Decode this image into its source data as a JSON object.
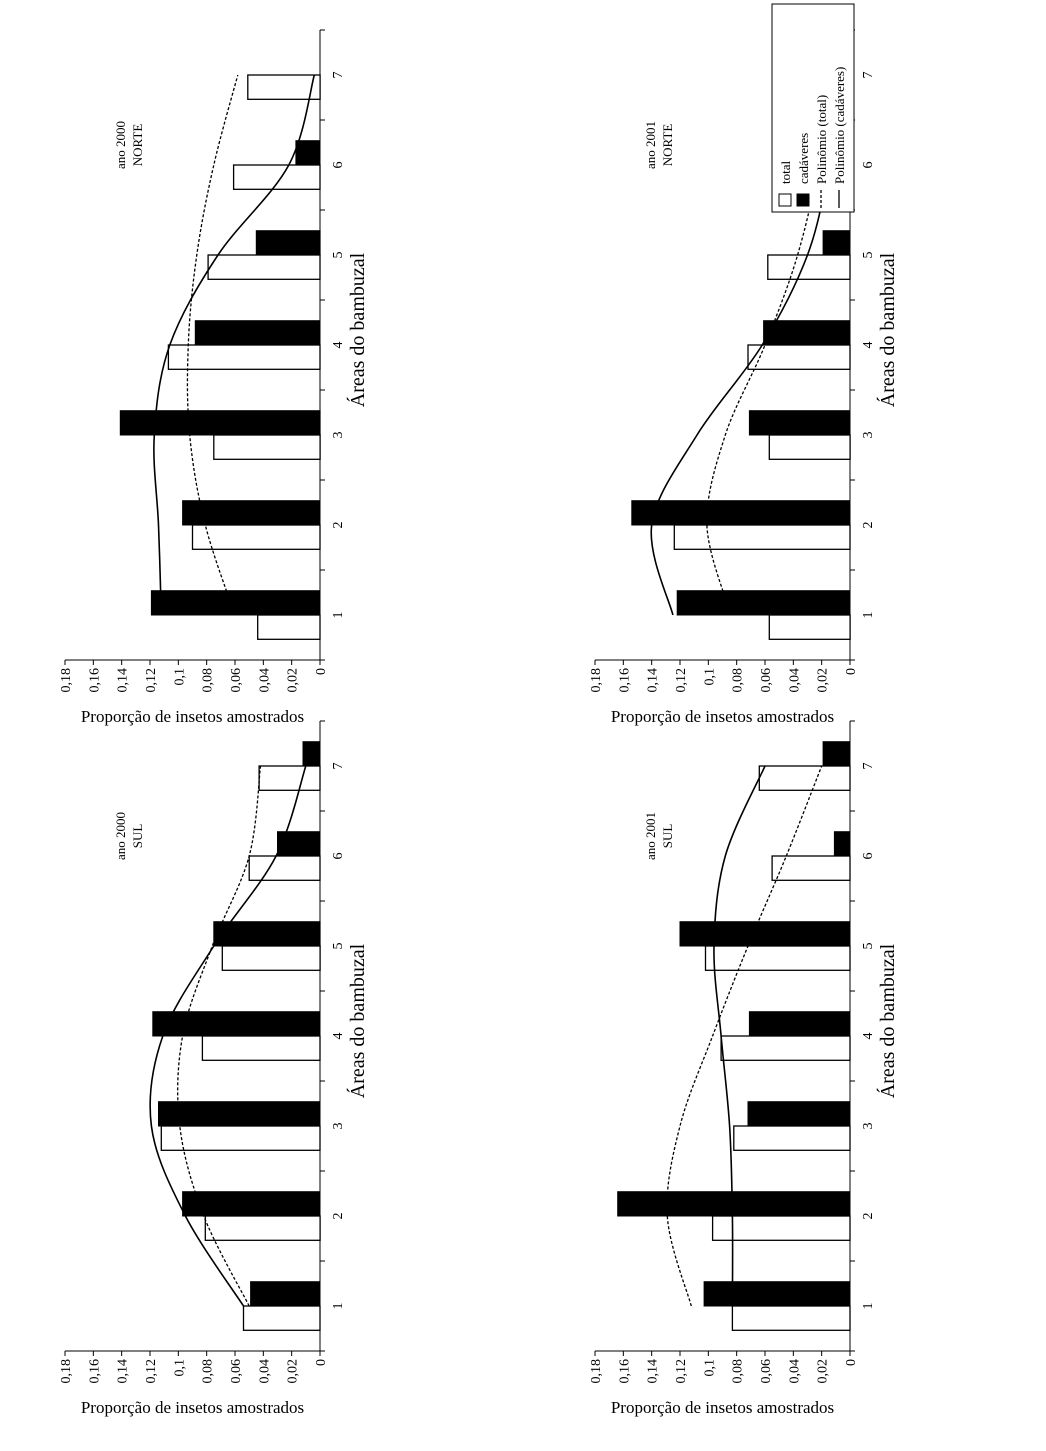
{
  "legend": {
    "items": [
      {
        "label": "total",
        "kind": "bar",
        "color": "#ffffff"
      },
      {
        "label": "cadáveres",
        "kind": "bar",
        "color": "#000000"
      },
      {
        "label": "Polinômio (total)",
        "kind": "line",
        "style": "dashed"
      },
      {
        "label": "Polinômio (cadáveres)",
        "kind": "line",
        "style": "solid"
      }
    ],
    "placement": "top-right"
  },
  "chart_data": [
    {
      "type": "bar",
      "title": "ano 2000 NORTE",
      "title_lines": [
        "ano 2000",
        "NORTE"
      ],
      "xlabel": "Áreas do bambuzal",
      "ylabel": "Proporção de insetos amostrados",
      "categories": [
        "1",
        "2",
        "3",
        "4",
        "5",
        "6",
        "7"
      ],
      "ylim": [
        0,
        0.18
      ],
      "yticks": [
        "0",
        "0,02",
        "0,04",
        "0,06",
        "0,08",
        "0,1",
        "0,12",
        "0,14",
        "0,16",
        "0,18"
      ],
      "series": [
        {
          "name": "total",
          "values": [
            0.044,
            0.09,
            0.075,
            0.107,
            0.079,
            0.061,
            0.051
          ]
        },
        {
          "name": "cadáveres",
          "values": [
            0.119,
            0.097,
            0.141,
            0.088,
            0.045,
            0.017,
            0
          ]
        }
      ],
      "trend": {
        "Polinômio (total)": [
          0.06,
          0.081,
          0.092,
          0.093,
          0.087,
          0.075,
          0.058
        ],
        "Polinômio (cadáveres)": [
          0.112,
          0.114,
          0.117,
          0.106,
          0.072,
          0.022,
          0.004
        ]
      }
    },
    {
      "type": "bar",
      "title": "ano 2001 NORTE",
      "title_lines": [
        "ano 2001",
        "NORTE"
      ],
      "xlabel": "Áreas do bambuzal",
      "ylabel": "Proporção de insetos amostrados",
      "categories": [
        "1",
        "2",
        "3",
        "4",
        "5",
        "6",
        "7"
      ],
      "ylim": [
        0,
        0.18
      ],
      "yticks": [
        "0",
        "0,02",
        "0,04",
        "0,06",
        "0,08",
        "0,1",
        "0,12",
        "0,14",
        "0,16",
        "0,18"
      ],
      "series": [
        {
          "name": "total",
          "values": [
            0.057,
            0.124,
            0.057,
            0.072,
            0.058,
            0.024,
            0.021
          ]
        },
        {
          "name": "cadáveres",
          "values": [
            0.122,
            0.154,
            0.071,
            0.061,
            0.019,
            0.009,
            0
          ]
        }
      ],
      "trend": {
        "Polinômio (total)": [
          0.084,
          0.101,
          0.088,
          0.06,
          0.037,
          0.023,
          0.02
        ],
        "Polinômio (cadáveres)": [
          0.125,
          0.14,
          0.108,
          0.062,
          0.03,
          0.014,
          0.0
        ]
      }
    },
    {
      "type": "bar",
      "title": "ano 2000 SUL",
      "title_lines": [
        "ano 2000",
        "SUL"
      ],
      "xlabel": "Áreas do bambuzal",
      "ylabel": "Proporção de insetos amostrados",
      "categories": [
        "1",
        "2",
        "3",
        "4",
        "5",
        "6",
        "7"
      ],
      "ylim": [
        0,
        0.18
      ],
      "yticks": [
        "0",
        "0,02",
        "0,04",
        "0,06",
        "0,08",
        "0,1",
        "0,12",
        "0,14",
        "0,16",
        "0,18"
      ],
      "series": [
        {
          "name": "total",
          "values": [
            0.054,
            0.081,
            0.112,
            0.083,
            0.069,
            0.05,
            0.043
          ]
        },
        {
          "name": "cadáveres",
          "values": [
            0.049,
            0.097,
            0.114,
            0.118,
            0.075,
            0.03,
            0.012
          ]
        }
      ],
      "trend": {
        "Polinômio (total)": [
          0.05,
          0.082,
          0.099,
          0.097,
          0.076,
          0.05,
          0.042
        ],
        "Polinômio (cadáveres)": [
          0.054,
          0.095,
          0.119,
          0.111,
          0.075,
          0.031,
          0.01
        ]
      }
    },
    {
      "type": "bar",
      "title": "ano 2001 SUL",
      "title_lines": [
        "ano 2001",
        "SUL"
      ],
      "xlabel": "Áreas do bambuzal",
      "ylabel": "Proporção de insetos amostrados",
      "categories": [
        "1",
        "2",
        "3",
        "4",
        "5",
        "6",
        "7"
      ],
      "ylim": [
        0,
        0.18
      ],
      "yticks": [
        "0",
        "0,02",
        "0,04",
        "0,06",
        "0,08",
        "0,1",
        "0,12",
        "0,14",
        "0,16",
        "0,18"
      ],
      "series": [
        {
          "name": "total",
          "values": [
            0.083,
            0.097,
            0.082,
            0.091,
            0.102,
            0.055,
            0.064
          ]
        },
        {
          "name": "cadáveres",
          "values": [
            0.103,
            0.164,
            0.072,
            0.071,
            0.12,
            0.011,
            0.019
          ]
        }
      ],
      "trend": {
        "Polinômio (total)": [
          0.112,
          0.129,
          0.12,
          0.097,
          0.072,
          0.045,
          0.02
        ],
        "Polinômio (cadáveres)": [
          0.083,
          0.083,
          0.085,
          0.091,
          0.096,
          0.088,
          0.06
        ]
      }
    }
  ]
}
